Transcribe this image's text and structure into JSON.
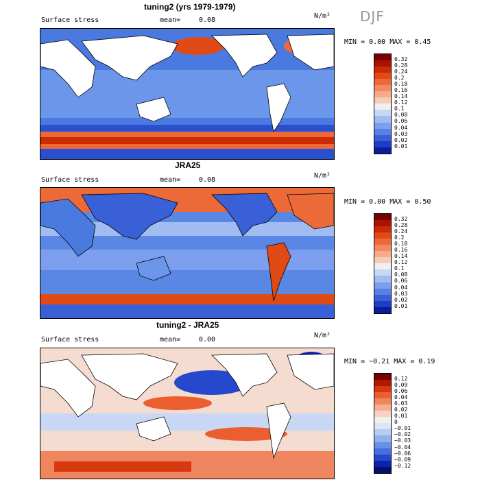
{
  "season": "DJF",
  "panels": [
    {
      "title": "tuning2 (yrs 1979-1979)",
      "variable": "Surface stress",
      "mean_label": "mean=",
      "mean_value": "0.08",
      "units": "N/m²",
      "minmax": "MIN =   0.00 MAX =   0.45",
      "colorbar_labels": [
        "0.32",
        "0.28",
        "0.24",
        "0.2",
        "0.18",
        "0.16",
        "0.14",
        "0.12",
        "0.1",
        "0.08",
        "0.06",
        "0.04",
        "0.03",
        "0.02",
        "0.01"
      ]
    },
    {
      "title": "JRA25",
      "variable": "Surface stress",
      "mean_label": "mean=",
      "mean_value": "0.08",
      "units": "N/m²",
      "minmax": "MIN =   0.00 MAX =   0.50",
      "colorbar_labels": [
        "0.32",
        "0.28",
        "0.24",
        "0.2",
        "0.18",
        "0.16",
        "0.14",
        "0.12",
        "0.1",
        "0.08",
        "0.06",
        "0.04",
        "0.03",
        "0.02",
        "0.01"
      ]
    },
    {
      "title": "tuning2 - JRA25",
      "variable": "Surface stress",
      "mean_label": "mean=",
      "mean_value": "0.00",
      "units": "N/m²",
      "minmax": "MIN = −0.21 MAX =   0.19",
      "colorbar_labels": [
        "0.12",
        "0.09",
        "0.06",
        "0.04",
        "0.03",
        "0.02",
        "0.01",
        "0",
        "−0.01",
        "−0.02",
        "−0.03",
        "−0.04",
        "−0.06",
        "−0.09",
        "−0.12"
      ]
    }
  ],
  "colors": {
    "seq": [
      "#7a0000",
      "#a81400",
      "#cc2a00",
      "#e04a14",
      "#ec6a38",
      "#f28a60",
      "#f4ab8a",
      "#f6ccb4",
      "#f0f0f2",
      "#c8d8f4",
      "#a0bcf0",
      "#7c9eec",
      "#5a80e4",
      "#3a60d8",
      "#1e3cc8",
      "#0a1e9a"
    ],
    "div": [
      "#7a0000",
      "#b01800",
      "#d83810",
      "#ea5e30",
      "#f08660",
      "#f4ae90",
      "#f8d4c4",
      "#f4f0f0",
      "#dce6f6",
      "#b8ccf2",
      "#90b0ee",
      "#6a90e6",
      "#4670dc",
      "#2648cc",
      "#0c24a8",
      "#041070"
    ]
  }
}
